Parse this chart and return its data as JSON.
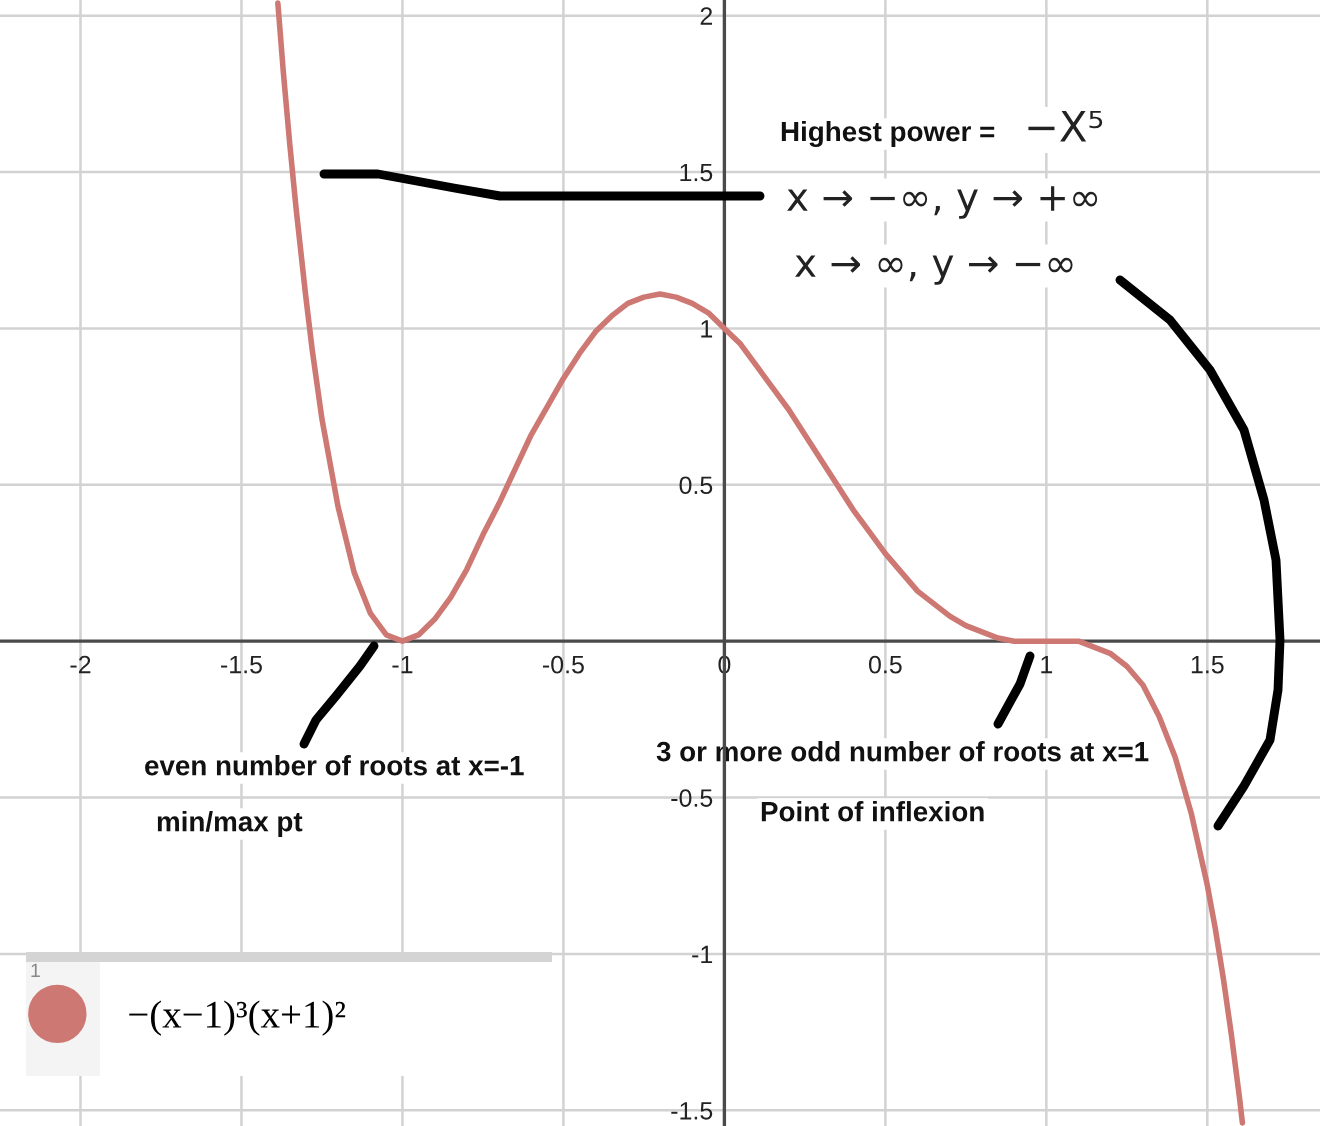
{
  "chart_data": {
    "type": "line",
    "xlim": [
      -2.25,
      1.85
    ],
    "ylim": [
      -1.55,
      2.05
    ],
    "xticks": [
      -2,
      -1.5,
      -1,
      -0.5,
      0,
      0.5,
      1,
      1.5
    ],
    "yticks": [
      -1.5,
      -1,
      -0.5,
      0.5,
      1,
      1.5,
      2
    ],
    "grid": true,
    "legend": "bottom left",
    "x": [
      -1.387,
      -1.38,
      -1.37,
      -1.35,
      -1.33,
      -1.3,
      -1.28,
      -1.25,
      -1.2,
      -1.15,
      -1.1,
      -1.05,
      -1,
      -0.95,
      -0.9,
      -0.85,
      -0.8,
      -0.75,
      -0.7,
      -0.65,
      -0.6,
      -0.55,
      -0.5,
      -0.45,
      -0.4,
      -0.35,
      -0.3,
      -0.25,
      -0.2,
      -0.15,
      -0.1,
      -0.05,
      0,
      0.05,
      0.1,
      0.15,
      0.2,
      0.25,
      0.3,
      0.35,
      0.4,
      0.45,
      0.5,
      0.55,
      0.6,
      0.65,
      0.7,
      0.75,
      0.8,
      0.85,
      0.9,
      0.95,
      1,
      1.05,
      1.1,
      1.15,
      1.2,
      1.25,
      1.3,
      1.35,
      1.4,
      1.45,
      1.5,
      1.525,
      1.55,
      1.575,
      1.6,
      1.609
    ],
    "series": [
      {
        "name": "−(x−1)³(x+1)²",
        "color": "#cd7873",
        "values": [
          2.04,
          1.95,
          1.82,
          1.59,
          1.38,
          1.1,
          0.93,
          0.71,
          0.43,
          0.22,
          0.09,
          0.02,
          0,
          0.02,
          0.07,
          0.14,
          0.23,
          0.34,
          0.44,
          0.55,
          0.66,
          0.75,
          0.84,
          0.92,
          0.99,
          1.04,
          1.08,
          1.1,
          1.11,
          1.1,
          1.08,
          1.05,
          1,
          0.95,
          0.88,
          0.81,
          0.74,
          0.66,
          0.58,
          0.5,
          0.42,
          0.35,
          0.28,
          0.22,
          0.16,
          0.12,
          0.08,
          0.05,
          0.03,
          0.01,
          0,
          0,
          0,
          0,
          0,
          -0.02,
          -0.04,
          -0.08,
          -0.14,
          -0.24,
          -0.37,
          -0.55,
          -0.78,
          -0.92,
          -1.08,
          -1.26,
          -1.46,
          -1.54
        ]
      }
    ],
    "annotations": [
      "Highest power =",
      "−X⁵",
      "x → −∞, y → +∞",
      "x → ∞, y → −∞",
      "even number of roots at x=-1",
      "min/max pt",
      "3 or more odd number of roots at x=1",
      "Point of inflexion",
      "1"
    ]
  }
}
